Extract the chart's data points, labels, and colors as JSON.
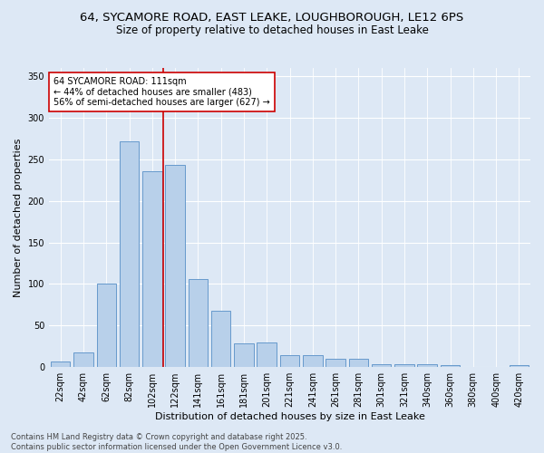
{
  "title_line1": "64, SYCAMORE ROAD, EAST LEAKE, LOUGHBOROUGH, LE12 6PS",
  "title_line2": "Size of property relative to detached houses in East Leake",
  "xlabel": "Distribution of detached houses by size in East Leake",
  "ylabel": "Number of detached properties",
  "categories": [
    "22sqm",
    "42sqm",
    "62sqm",
    "82sqm",
    "102sqm",
    "122sqm",
    "141sqm",
    "161sqm",
    "181sqm",
    "201sqm",
    "221sqm",
    "241sqm",
    "261sqm",
    "281sqm",
    "301sqm",
    "321sqm",
    "340sqm",
    "360sqm",
    "380sqm",
    "400sqm",
    "420sqm"
  ],
  "values": [
    7,
    18,
    100,
    272,
    236,
    243,
    106,
    68,
    29,
    30,
    14,
    14,
    10,
    10,
    4,
    4,
    4,
    2,
    0,
    0,
    2
  ],
  "bar_color": "#b8d0ea",
  "bar_edge_color": "#6699cc",
  "vline_x_index": 4,
  "vline_color": "#cc0000",
  "annotation_text": "64 SYCAMORE ROAD: 111sqm\n← 44% of detached houses are smaller (483)\n56% of semi-detached houses are larger (627) →",
  "annotation_box_color": "#ffffff",
  "annotation_box_edge": "#cc0000",
  "ylim": [
    0,
    360
  ],
  "yticks": [
    0,
    50,
    100,
    150,
    200,
    250,
    300,
    350
  ],
  "background_color": "#dde8f5",
  "plot_bg_color": "#dde8f5",
  "footer_text": "Contains HM Land Registry data © Crown copyright and database right 2025.\nContains public sector information licensed under the Open Government Licence v3.0.",
  "title_fontsize": 9.5,
  "subtitle_fontsize": 8.5,
  "axis_label_fontsize": 8,
  "tick_fontsize": 7,
  "annotation_fontsize": 7,
  "footer_fontsize": 6
}
